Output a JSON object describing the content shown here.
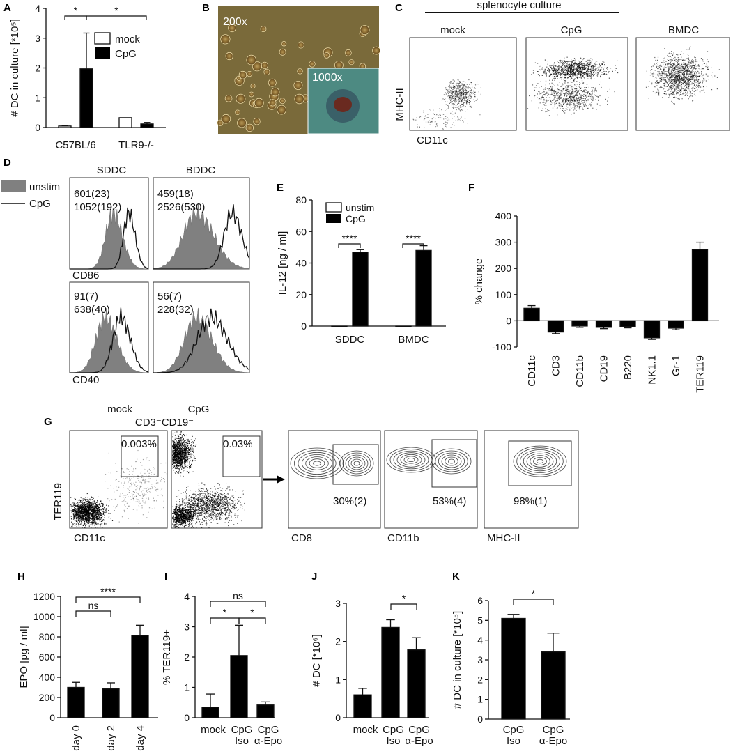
{
  "colors": {
    "bar": "#000000",
    "open": "#ffffff",
    "hist_fill": "#808080",
    "micro_bg": "#7a6a3a",
    "micro_inset": "#4d8a82",
    "text": "#111111"
  },
  "panel_letters": [
    "A",
    "B",
    "C",
    "D",
    "E",
    "F",
    "G",
    "H",
    "I",
    "J",
    "K"
  ],
  "micro": {
    "label_200": "200x",
    "label_1000": "1000x"
  },
  "c_panel": {
    "header": "splenocyte culture",
    "titles": [
      "mock",
      "CpG",
      "BMDC"
    ],
    "ylabel": "MHC-II",
    "xlabel": "CD11c"
  },
  "d_panel": {
    "legend": [
      "unstim",
      "CpG"
    ],
    "col_titles": [
      "SDDC",
      "BDDC"
    ],
    "row_labels": [
      "CD86",
      "CD40"
    ],
    "annotations": [
      [
        "601(23)",
        "1052(192)"
      ],
      [
        "459(18)",
        "2526(530)"
      ],
      [
        "91(7)",
        "638(40)"
      ],
      [
        "56(7)",
        "228(32)"
      ]
    ]
  },
  "g_panel": {
    "title_mock": "mock",
    "title_cpg": "CpG",
    "gate_label": "CD3⁻CD19⁻",
    "ylabel": "TER119",
    "xlabels": [
      "CD11c",
      "",
      "CD8",
      "CD11b",
      "MHC-II"
    ],
    "pcts": [
      "0.003%",
      "0.03%",
      "30%(2)",
      "53%(4)",
      "98%(1)"
    ]
  },
  "chart_data": [
    {
      "id": "A",
      "type": "bar",
      "ylabel": "# DC in culture [*10⁵]",
      "ylim": [
        0,
        4
      ],
      "yticks": [
        "0",
        "1",
        "2",
        "3",
        "4"
      ],
      "categories": [
        "C57BL/6",
        "TLR9-/-"
      ],
      "series": [
        {
          "name": "mock",
          "values": [
            0.05,
            0.33
          ],
          "errors": [
            0.02,
            0
          ]
        },
        {
          "name": "CpG",
          "values": [
            1.97,
            0.12
          ],
          "errors": [
            1.2,
            0.05
          ]
        }
      ],
      "legend": "top-right",
      "annotations": [
        "*",
        "*"
      ]
    },
    {
      "id": "E",
      "type": "bar",
      "ylabel": "IL-12 [ng / ml]",
      "ylim": [
        0,
        80
      ],
      "yticks": [
        "0",
        "20",
        "40",
        "60",
        "80"
      ],
      "categories": [
        "SDDC",
        "BMDC"
      ],
      "series": [
        {
          "name": "unstim",
          "values": [
            0,
            0
          ],
          "errors": [
            0,
            0
          ]
        },
        {
          "name": "CpG",
          "values": [
            47,
            48
          ],
          "errors": [
            1.5,
            3
          ]
        }
      ],
      "legend": "top-left",
      "annotations": [
        "****",
        "****"
      ]
    },
    {
      "id": "F",
      "type": "bar",
      "ylabel": "% change",
      "ylim": [
        -100,
        400
      ],
      "yticks": [
        "-100",
        "0",
        "100",
        "200",
        "300",
        "400"
      ],
      "categories": [
        "CD11c",
        "CD3",
        "CD11b",
        "CD19",
        "B220",
        "NK1.1",
        "Gr-1",
        "TER119"
      ],
      "values": [
        48,
        -43,
        -20,
        -25,
        -22,
        -65,
        -28,
        272
      ],
      "errors": [
        10,
        6,
        5,
        5,
        5,
        6,
        6,
        28
      ]
    },
    {
      "id": "H",
      "type": "bar",
      "ylabel": "EPO [pg / ml]",
      "ylim": [
        0,
        1200
      ],
      "yticks": [
        "0",
        "200",
        "400",
        "600",
        "800",
        "1000",
        "1200"
      ],
      "categories": [
        "day 0",
        "day 2",
        "day 4"
      ],
      "values": [
        300,
        285,
        815
      ],
      "errors": [
        50,
        60,
        100
      ],
      "annotations": [
        "ns",
        "****"
      ]
    },
    {
      "id": "I",
      "type": "bar",
      "ylabel": "% TER119+",
      "ylim": [
        0,
        4
      ],
      "yticks": [
        "0",
        "1",
        "2",
        "3",
        "4"
      ],
      "categories": [
        "mock",
        "CpG\nIso",
        "CpG\nα-Epo"
      ],
      "values": [
        0.35,
        2.05,
        0.42
      ],
      "errors": [
        0.43,
        1.0,
        0.1
      ],
      "annotations": [
        "*",
        "*",
        "ns"
      ]
    },
    {
      "id": "J",
      "type": "bar",
      "ylabel": "# DC [*10⁶]",
      "ylim": [
        0,
        3
      ],
      "yticks": [
        "0",
        "1",
        "2",
        "3"
      ],
      "categories": [
        "mock",
        "CpG\nIso",
        "CpG\nα-Epo"
      ],
      "values": [
        0.6,
        2.37,
        1.78
      ],
      "errors": [
        0.17,
        0.2,
        0.32
      ],
      "annotations": [
        "*"
      ]
    },
    {
      "id": "K",
      "type": "bar",
      "ylabel": "# DC in culture [*10⁵]",
      "ylim": [
        0,
        6
      ],
      "yticks": [
        "0",
        "1",
        "2",
        "3",
        "4",
        "5",
        "6"
      ],
      "categories": [
        "CpG\nIso",
        "CpG\nα-Epo"
      ],
      "values": [
        5.1,
        3.4
      ],
      "errors": [
        0.2,
        0.95
      ],
      "annotations": [
        "*"
      ]
    }
  ]
}
